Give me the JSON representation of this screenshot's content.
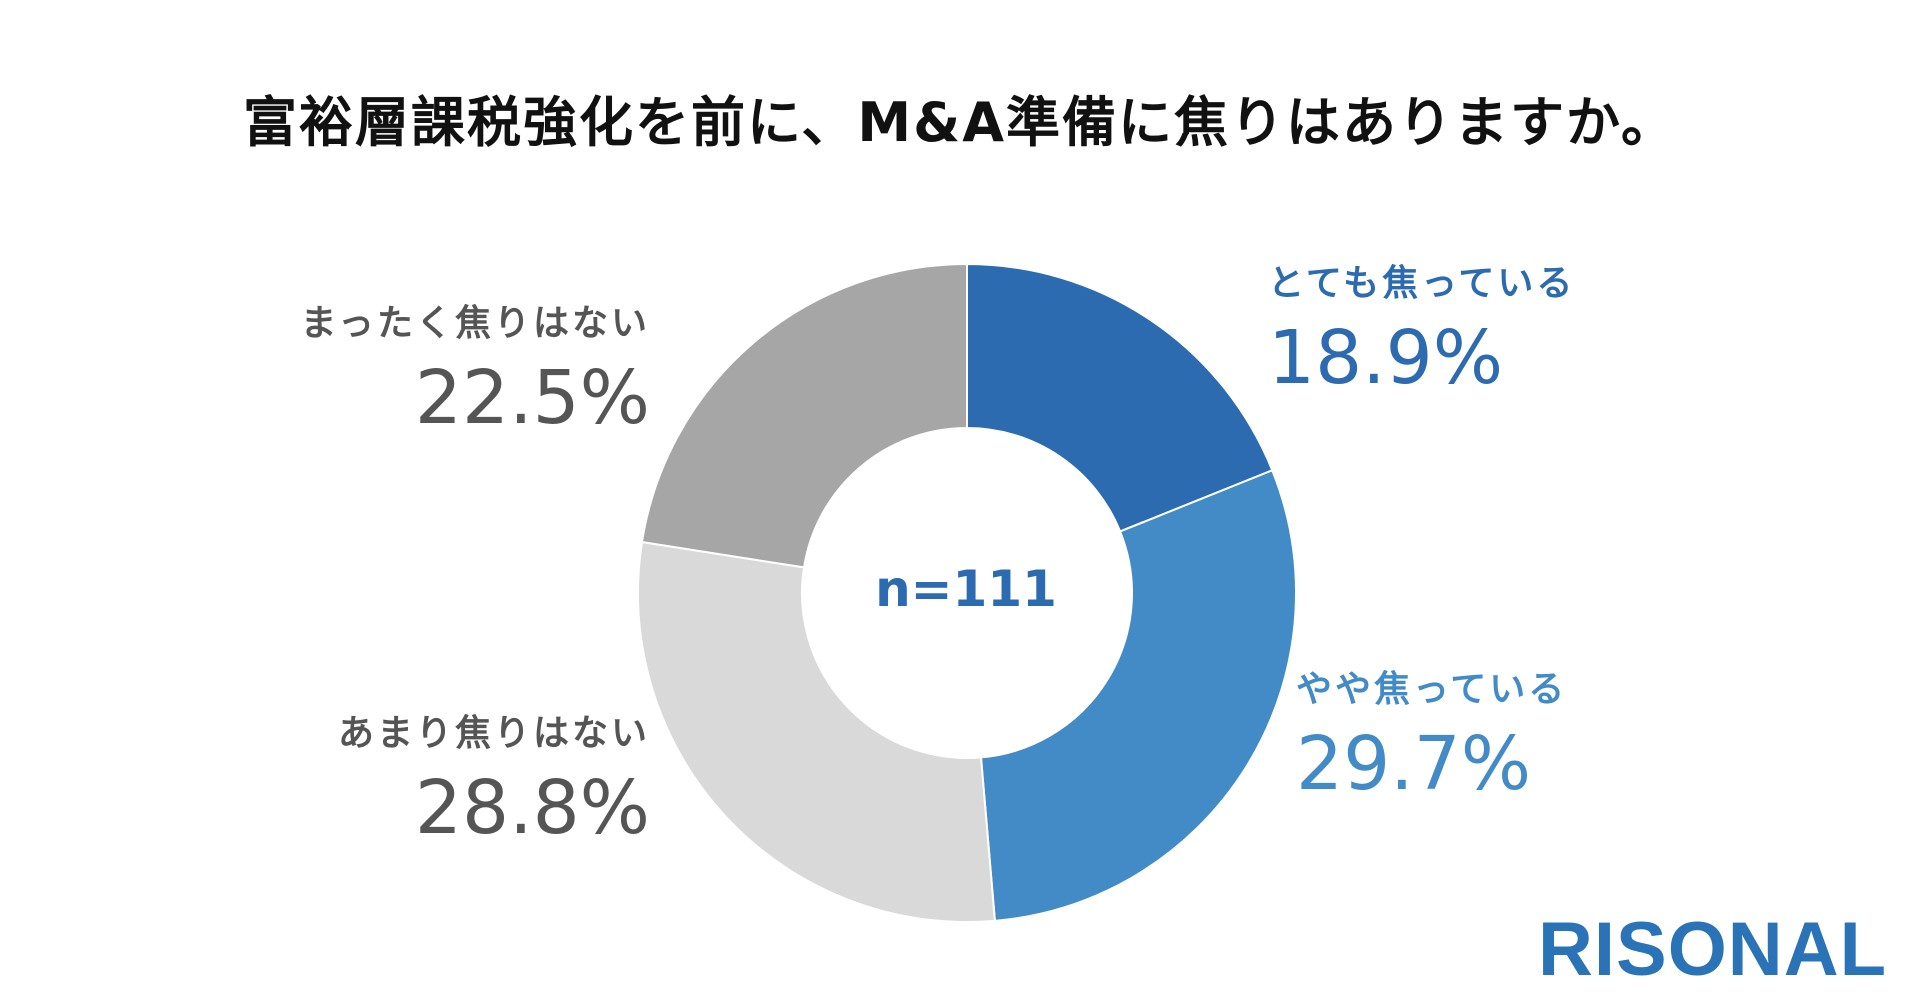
{
  "title": "富裕層課税強化を前に、M&A準備に焦りはありますか。",
  "chart_data": {
    "type": "pie",
    "variant": "donut",
    "sample_label": "n=111",
    "slices": [
      {
        "label": "とても焦っている",
        "value": 18.9,
        "value_text": "18.9%",
        "color": "#2c6bb0",
        "label_color": "#2c6bb0"
      },
      {
        "label": "やや焦っている",
        "value": 29.7,
        "value_text": "29.7%",
        "color": "#428bc7",
        "label_color": "#428bc7"
      },
      {
        "label": "あまり焦りはない",
        "value": 28.8,
        "value_text": "28.8%",
        "color": "#d9d9d9",
        "label_color": "#555555"
      },
      {
        "label": "まったく焦りはない",
        "value": 22.5,
        "value_text": "22.5%",
        "color": "#a6a6a6",
        "label_color": "#555555"
      }
    ]
  },
  "logo": "RISONAL"
}
